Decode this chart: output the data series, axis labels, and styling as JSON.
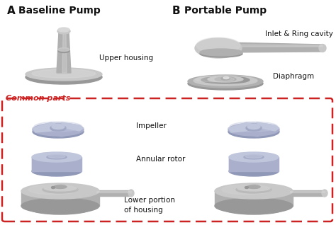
{
  "title_A": "Baseline Pump",
  "title_B": "Portable Pump",
  "label_A": "A",
  "label_B": "B",
  "label_upper_housing": "Upper housing",
  "label_common_parts": "Common parts",
  "label_inlet_ring": "Inlet & Ring cavity",
  "label_diaphragm": "Diaphragm",
  "label_impeller": "Impeller",
  "label_annular_rotor": "Annular rotor",
  "label_lower_portion": "Lower portion\nof housing",
  "bg_color": "#ffffff",
  "gray1": "#b0b0b0",
  "gray2": "#c8c8c8",
  "gray3": "#989898",
  "gray4": "#808080",
  "gray5": "#d8d8d8",
  "blue1": "#aab0cc",
  "blue2": "#c0c6dc",
  "blue3": "#9098b8",
  "red_dash": "#cc2222",
  "black": "#111111",
  "font_title": 10,
  "font_label": 7.5,
  "font_common": 8
}
